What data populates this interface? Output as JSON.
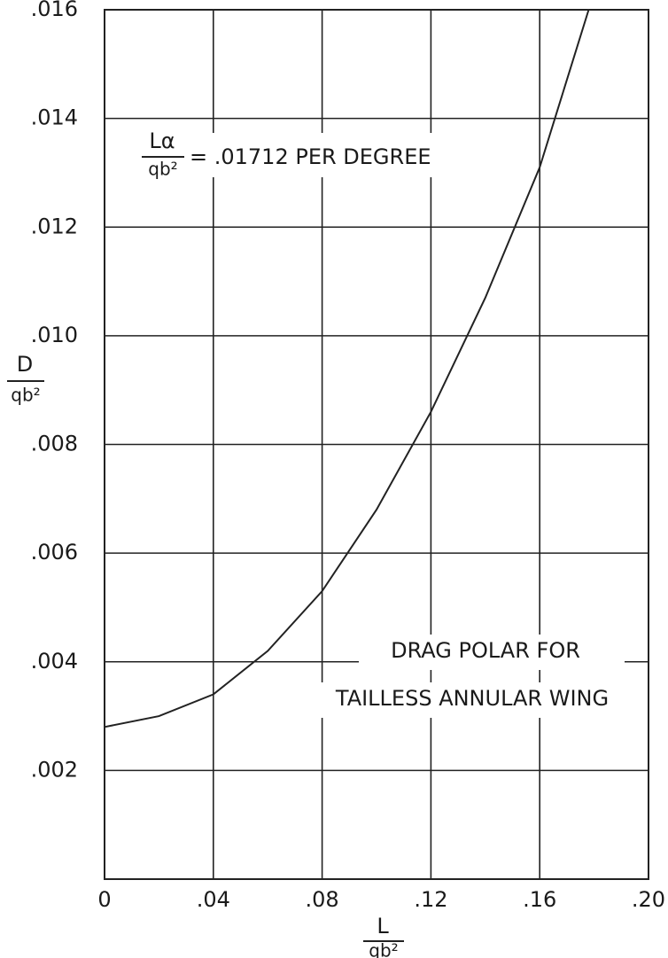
{
  "chart_data": {
    "type": "line",
    "x": [
      0,
      0.02,
      0.04,
      0.06,
      0.08,
      0.1,
      0.12,
      0.14,
      0.16,
      0.178
    ],
    "series": [
      {
        "color": "#222222",
        "values": [
          0.0028,
          0.003,
          0.0034,
          0.0042,
          0.0053,
          0.0068,
          0.0086,
          0.0107,
          0.0131,
          0.016
        ]
      }
    ],
    "xlim": [
      0,
      0.2
    ],
    "ylim": [
      0,
      0.016
    ],
    "xticks": [
      0,
      {
        "value": 0.04,
        "label": ".04"
      },
      {
        "value": 0.08,
        "label": ".08"
      },
      {
        "value": 0.12,
        "label": ".12"
      },
      {
        "value": 0.16,
        "label": ".16"
      },
      {
        "value": 0.2,
        "label": ".20"
      }
    ],
    "yticks": [
      {
        "value": 0.002,
        "label": ".002"
      },
      {
        "value": 0.004,
        "label": ".004"
      },
      {
        "value": 0.006,
        "label": ".006"
      },
      {
        "value": 0.008,
        "label": ".008"
      },
      {
        "value": 0.01,
        "label": ".010"
      },
      {
        "value": 0.012,
        "label": ".012"
      },
      {
        "value": 0.014,
        "label": ".014"
      },
      {
        "value": 0.016,
        "label": ".016"
      }
    ],
    "x_label": {
      "numerator": "L",
      "denominator": "qb²"
    },
    "y_label": {
      "numerator": "D",
      "denominator": "qb²"
    },
    "annotations": {
      "lift_slope": {
        "numerator": "Lα",
        "denominator": "qb²",
        "text": "= .01712 PER DEGREE"
      },
      "title_lines": [
        "DRAG POLAR FOR",
        "TAILLESS ANNULAR WING"
      ]
    },
    "grid": true
  }
}
